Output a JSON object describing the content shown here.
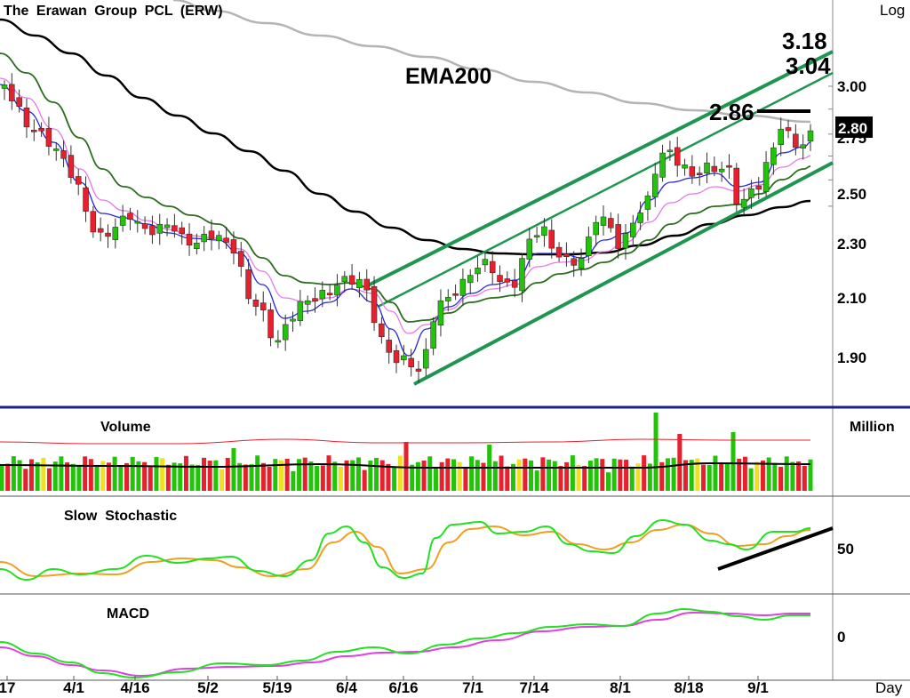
{
  "chart_data": {
    "type": "candlestick",
    "title": "The Erawan Group PCL (ERW)",
    "scale_label": "Log",
    "x_axis_label": "Day",
    "x_tick_labels": [
      "17",
      "4/1",
      "4/16",
      "5/2",
      "5/19",
      "6/4",
      "6/16",
      "7/1",
      "7/14",
      "8/1",
      "8/18",
      "9/1"
    ],
    "y_tick_labels": [
      "3.00",
      "2.80",
      "2.75",
      "2.50",
      "2.30",
      "2.10",
      "1.90"
    ],
    "y_ticks": [
      3.0,
      2.75,
      2.5,
      2.3,
      2.1,
      1.9
    ],
    "y_range": [
      1.76,
      3.4
    ],
    "current_price_label": "2.80",
    "annotations": {
      "ema": "EMA200",
      "resistance": "2.86",
      "target_high": "3.18",
      "target_mid": "3.04"
    },
    "price": {
      "start": "2.96",
      "low": "1.80",
      "high": "2.86",
      "last": "2.80"
    },
    "volume_panel": {
      "title": "Volume",
      "unit": "Million"
    },
    "stochastic_panel": {
      "title": "Slow  Stochastic",
      "tick_label": "50"
    },
    "macd_panel": {
      "title": "MACD",
      "tick_label": "0"
    },
    "colors": {
      "up": "#22c40a",
      "down": "#e6202d",
      "flat": "#f0e020",
      "channel": "#1e9650",
      "ema200": "#b4b4b4",
      "ma_black": "#000000",
      "ma_darkgreen": "#2a6e1e",
      "ma_pink": "#e878e8",
      "ma_blue": "#2828dc",
      "stoch_fast": "#22e022",
      "stoch_slow": "#f0a020",
      "macd_line": "#22e022",
      "macd_signal": "#e040e0",
      "volume_avg": "#e6202d",
      "separator": "#1a237e"
    }
  }
}
